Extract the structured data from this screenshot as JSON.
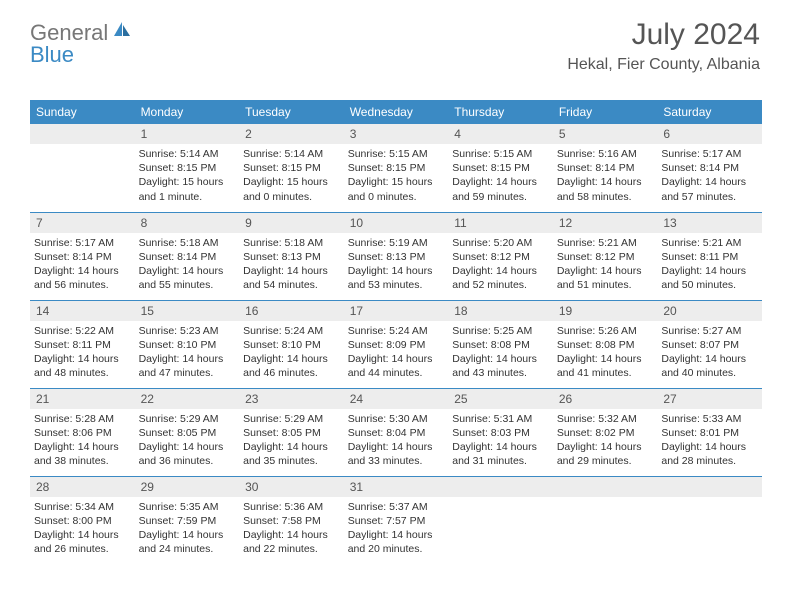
{
  "logo": {
    "part1": "General",
    "part2": "Blue"
  },
  "title": "July 2024",
  "location": "Hekal, Fier County, Albania",
  "colors": {
    "header_bg": "#3b8ac4",
    "header_text": "#ffffff",
    "daynum_bg": "#ededed",
    "text": "#333333",
    "title_text": "#555555",
    "row_border": "#3b8ac4"
  },
  "day_headers": [
    "Sunday",
    "Monday",
    "Tuesday",
    "Wednesday",
    "Thursday",
    "Friday",
    "Saturday"
  ],
  "weeks": [
    [
      {
        "num": "",
        "sunrise": "",
        "sunset": "",
        "daylight": ""
      },
      {
        "num": "1",
        "sunrise": "Sunrise: 5:14 AM",
        "sunset": "Sunset: 8:15 PM",
        "daylight": "Daylight: 15 hours and 1 minute."
      },
      {
        "num": "2",
        "sunrise": "Sunrise: 5:14 AM",
        "sunset": "Sunset: 8:15 PM",
        "daylight": "Daylight: 15 hours and 0 minutes."
      },
      {
        "num": "3",
        "sunrise": "Sunrise: 5:15 AM",
        "sunset": "Sunset: 8:15 PM",
        "daylight": "Daylight: 15 hours and 0 minutes."
      },
      {
        "num": "4",
        "sunrise": "Sunrise: 5:15 AM",
        "sunset": "Sunset: 8:15 PM",
        "daylight": "Daylight: 14 hours and 59 minutes."
      },
      {
        "num": "5",
        "sunrise": "Sunrise: 5:16 AM",
        "sunset": "Sunset: 8:14 PM",
        "daylight": "Daylight: 14 hours and 58 minutes."
      },
      {
        "num": "6",
        "sunrise": "Sunrise: 5:17 AM",
        "sunset": "Sunset: 8:14 PM",
        "daylight": "Daylight: 14 hours and 57 minutes."
      }
    ],
    [
      {
        "num": "7",
        "sunrise": "Sunrise: 5:17 AM",
        "sunset": "Sunset: 8:14 PM",
        "daylight": "Daylight: 14 hours and 56 minutes."
      },
      {
        "num": "8",
        "sunrise": "Sunrise: 5:18 AM",
        "sunset": "Sunset: 8:14 PM",
        "daylight": "Daylight: 14 hours and 55 minutes."
      },
      {
        "num": "9",
        "sunrise": "Sunrise: 5:18 AM",
        "sunset": "Sunset: 8:13 PM",
        "daylight": "Daylight: 14 hours and 54 minutes."
      },
      {
        "num": "10",
        "sunrise": "Sunrise: 5:19 AM",
        "sunset": "Sunset: 8:13 PM",
        "daylight": "Daylight: 14 hours and 53 minutes."
      },
      {
        "num": "11",
        "sunrise": "Sunrise: 5:20 AM",
        "sunset": "Sunset: 8:12 PM",
        "daylight": "Daylight: 14 hours and 52 minutes."
      },
      {
        "num": "12",
        "sunrise": "Sunrise: 5:21 AM",
        "sunset": "Sunset: 8:12 PM",
        "daylight": "Daylight: 14 hours and 51 minutes."
      },
      {
        "num": "13",
        "sunrise": "Sunrise: 5:21 AM",
        "sunset": "Sunset: 8:11 PM",
        "daylight": "Daylight: 14 hours and 50 minutes."
      }
    ],
    [
      {
        "num": "14",
        "sunrise": "Sunrise: 5:22 AM",
        "sunset": "Sunset: 8:11 PM",
        "daylight": "Daylight: 14 hours and 48 minutes."
      },
      {
        "num": "15",
        "sunrise": "Sunrise: 5:23 AM",
        "sunset": "Sunset: 8:10 PM",
        "daylight": "Daylight: 14 hours and 47 minutes."
      },
      {
        "num": "16",
        "sunrise": "Sunrise: 5:24 AM",
        "sunset": "Sunset: 8:10 PM",
        "daylight": "Daylight: 14 hours and 46 minutes."
      },
      {
        "num": "17",
        "sunrise": "Sunrise: 5:24 AM",
        "sunset": "Sunset: 8:09 PM",
        "daylight": "Daylight: 14 hours and 44 minutes."
      },
      {
        "num": "18",
        "sunrise": "Sunrise: 5:25 AM",
        "sunset": "Sunset: 8:08 PM",
        "daylight": "Daylight: 14 hours and 43 minutes."
      },
      {
        "num": "19",
        "sunrise": "Sunrise: 5:26 AM",
        "sunset": "Sunset: 8:08 PM",
        "daylight": "Daylight: 14 hours and 41 minutes."
      },
      {
        "num": "20",
        "sunrise": "Sunrise: 5:27 AM",
        "sunset": "Sunset: 8:07 PM",
        "daylight": "Daylight: 14 hours and 40 minutes."
      }
    ],
    [
      {
        "num": "21",
        "sunrise": "Sunrise: 5:28 AM",
        "sunset": "Sunset: 8:06 PM",
        "daylight": "Daylight: 14 hours and 38 minutes."
      },
      {
        "num": "22",
        "sunrise": "Sunrise: 5:29 AM",
        "sunset": "Sunset: 8:05 PM",
        "daylight": "Daylight: 14 hours and 36 minutes."
      },
      {
        "num": "23",
        "sunrise": "Sunrise: 5:29 AM",
        "sunset": "Sunset: 8:05 PM",
        "daylight": "Daylight: 14 hours and 35 minutes."
      },
      {
        "num": "24",
        "sunrise": "Sunrise: 5:30 AM",
        "sunset": "Sunset: 8:04 PM",
        "daylight": "Daylight: 14 hours and 33 minutes."
      },
      {
        "num": "25",
        "sunrise": "Sunrise: 5:31 AM",
        "sunset": "Sunset: 8:03 PM",
        "daylight": "Daylight: 14 hours and 31 minutes."
      },
      {
        "num": "26",
        "sunrise": "Sunrise: 5:32 AM",
        "sunset": "Sunset: 8:02 PM",
        "daylight": "Daylight: 14 hours and 29 minutes."
      },
      {
        "num": "27",
        "sunrise": "Sunrise: 5:33 AM",
        "sunset": "Sunset: 8:01 PM",
        "daylight": "Daylight: 14 hours and 28 minutes."
      }
    ],
    [
      {
        "num": "28",
        "sunrise": "Sunrise: 5:34 AM",
        "sunset": "Sunset: 8:00 PM",
        "daylight": "Daylight: 14 hours and 26 minutes."
      },
      {
        "num": "29",
        "sunrise": "Sunrise: 5:35 AM",
        "sunset": "Sunset: 7:59 PM",
        "daylight": "Daylight: 14 hours and 24 minutes."
      },
      {
        "num": "30",
        "sunrise": "Sunrise: 5:36 AM",
        "sunset": "Sunset: 7:58 PM",
        "daylight": "Daylight: 14 hours and 22 minutes."
      },
      {
        "num": "31",
        "sunrise": "Sunrise: 5:37 AM",
        "sunset": "Sunset: 7:57 PM",
        "daylight": "Daylight: 14 hours and 20 minutes."
      },
      {
        "num": "",
        "sunrise": "",
        "sunset": "",
        "daylight": ""
      },
      {
        "num": "",
        "sunrise": "",
        "sunset": "",
        "daylight": ""
      },
      {
        "num": "",
        "sunrise": "",
        "sunset": "",
        "daylight": ""
      }
    ]
  ]
}
